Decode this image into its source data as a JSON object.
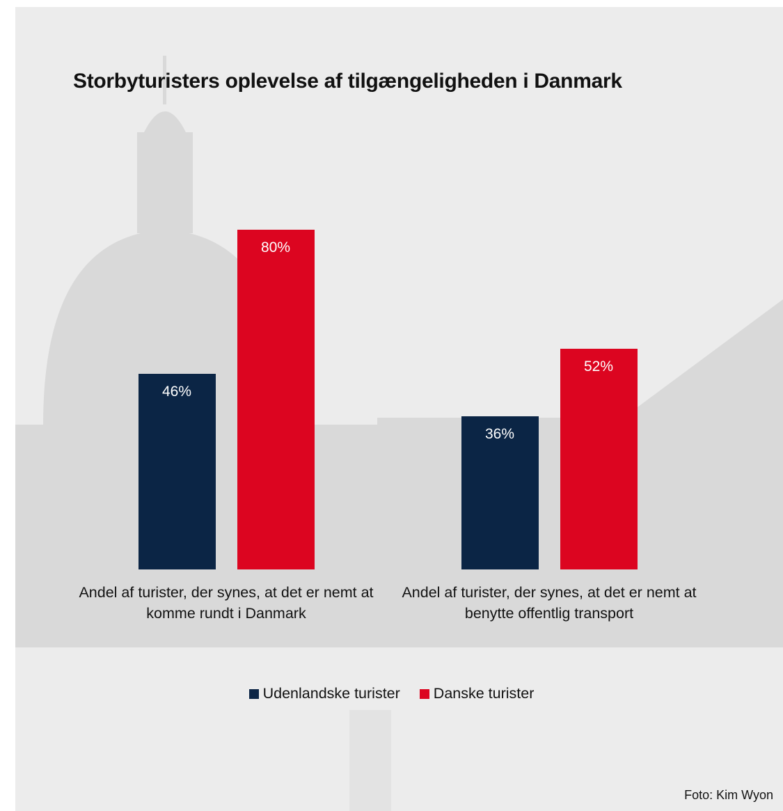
{
  "chart_data": {
    "type": "bar",
    "title": "Storbyturisters oplevelse af tilgængeligheden i Danmark",
    "categories": [
      "Andel af turister, der synes, at det er nemt at komme rundt i Danmark",
      "Andel af turister, der synes, at det er nemt at benytte offentlig transport"
    ],
    "series": [
      {
        "name": "Udenlandske turister",
        "color": "#0b2545",
        "values": [
          46,
          36
        ],
        "value_labels": [
          "46%",
          "36%"
        ]
      },
      {
        "name": "Danske turister",
        "color": "#dc0520",
        "values": [
          80,
          52
        ],
        "value_labels": [
          "80%",
          "52%"
        ]
      }
    ],
    "credit": "Foto: Kim Wyon"
  }
}
